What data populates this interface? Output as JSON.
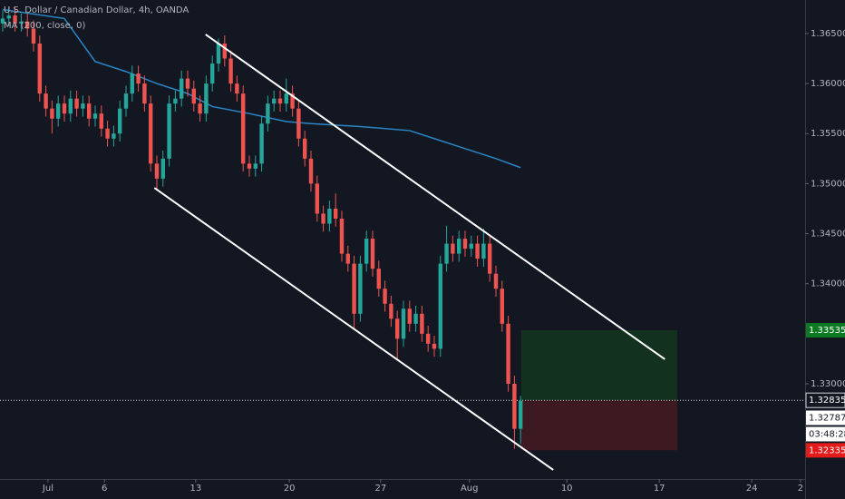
{
  "chart_data": {
    "type": "candlestick",
    "title": "U.S. Dollar / Canadian Dollar, 4h, OANDA",
    "indicator": "MA (200, close, 0)",
    "background": "#131722",
    "up_color": "#26a69a",
    "down_color": "#ef5350",
    "x": [
      0,
      1,
      2,
      3,
      4,
      5,
      6,
      7,
      8,
      9,
      10,
      11,
      12,
      13,
      14,
      15,
      16,
      17,
      18,
      19,
      20,
      21,
      22,
      23,
      24,
      25,
      26,
      27,
      28,
      29,
      30,
      31,
      32,
      33,
      34,
      35,
      36,
      37,
      38,
      39,
      40,
      41,
      42,
      43,
      44,
      45,
      46,
      47,
      48,
      49,
      50,
      51,
      52,
      53,
      54,
      55,
      56,
      57,
      58,
      59,
      60,
      61,
      62,
      63,
      64,
      65,
      66,
      67,
      68,
      69,
      70,
      71,
      72,
      73,
      74,
      75,
      76,
      77,
      78,
      79,
      80,
      81,
      82,
      83,
      84
    ],
    "open": [
      1.366,
      1.3665,
      1.3668,
      1.366,
      1.3662,
      1.3655,
      1.364,
      1.359,
      1.3575,
      1.3565,
      1.358,
      1.357,
      1.3585,
      1.3575,
      1.358,
      1.3565,
      1.357,
      1.3555,
      1.3545,
      1.355,
      1.3575,
      1.359,
      1.361,
      1.36,
      1.358,
      1.352,
      1.3505,
      1.3525,
      1.358,
      1.3585,
      1.3605,
      1.3595,
      1.358,
      1.357,
      1.36,
      1.362,
      1.364,
      1.3625,
      1.36,
      1.359,
      1.352,
      1.3515,
      1.352,
      1.356,
      1.358,
      1.3585,
      1.358,
      1.359,
      1.3575,
      1.3545,
      1.3525,
      1.35,
      1.347,
      1.346,
      1.3475,
      1.3465,
      1.343,
      1.342,
      1.337,
      1.342,
      1.3445,
      1.3415,
      1.3395,
      1.338,
      1.3365,
      1.3345,
      1.3375,
      1.336,
      1.337,
      1.335,
      1.334,
      1.3335,
      1.342,
      1.344,
      1.343,
      1.3445,
      1.3435,
      1.344,
      1.3425,
      1.344,
      1.341,
      1.3395,
      1.336,
      1.33,
      1.3255
    ],
    "high": [
      1.3673,
      1.3676,
      1.3676,
      1.367,
      1.367,
      1.3663,
      1.3648,
      1.3598,
      1.3583,
      1.3588,
      1.3588,
      1.3593,
      1.3593,
      1.3588,
      1.3588,
      1.3578,
      1.3578,
      1.3563,
      1.3558,
      1.3583,
      1.3598,
      1.3618,
      1.3618,
      1.3608,
      1.3588,
      1.3528,
      1.3533,
      1.3588,
      1.3593,
      1.3613,
      1.3613,
      1.3603,
      1.3588,
      1.3608,
      1.3628,
      1.3645,
      1.3648,
      1.3633,
      1.3608,
      1.3598,
      1.3528,
      1.3528,
      1.3568,
      1.3588,
      1.3593,
      1.3593,
      1.3605,
      1.3598,
      1.3583,
      1.3553,
      1.3533,
      1.3508,
      1.3478,
      1.3483,
      1.349,
      1.3473,
      1.3438,
      1.3428,
      1.3428,
      1.3453,
      1.3453,
      1.3423,
      1.3403,
      1.3388,
      1.3373,
      1.3383,
      1.3383,
      1.3378,
      1.3378,
      1.3358,
      1.3348,
      1.3428,
      1.3458,
      1.3448,
      1.3453,
      1.3453,
      1.3448,
      1.3448,
      1.3455,
      1.3448,
      1.3418,
      1.3403,
      1.3368,
      1.3308,
      1.3288
    ],
    "low": [
      1.3652,
      1.3657,
      1.3652,
      1.3652,
      1.3647,
      1.3632,
      1.3582,
      1.3567,
      1.355,
      1.3557,
      1.3562,
      1.3562,
      1.3567,
      1.3567,
      1.3557,
      1.3557,
      1.3547,
      1.3537,
      1.3537,
      1.3542,
      1.3567,
      1.3582,
      1.3592,
      1.3572,
      1.3512,
      1.3495,
      1.3497,
      1.3517,
      1.3572,
      1.3577,
      1.3587,
      1.3572,
      1.3562,
      1.3562,
      1.3592,
      1.3612,
      1.3617,
      1.3592,
      1.3582,
      1.3512,
      1.3507,
      1.3507,
      1.3512,
      1.3552,
      1.3572,
      1.3572,
      1.3572,
      1.3567,
      1.3537,
      1.3517,
      1.3492,
      1.3462,
      1.3452,
      1.3452,
      1.3457,
      1.3422,
      1.3412,
      1.3355,
      1.3362,
      1.3412,
      1.3407,
      1.3387,
      1.3372,
      1.3357,
      1.3325,
      1.3337,
      1.3352,
      1.3352,
      1.3342,
      1.3332,
      1.3327,
      1.3327,
      1.3412,
      1.3422,
      1.3422,
      1.3427,
      1.3427,
      1.3417,
      1.3417,
      1.3402,
      1.3387,
      1.3352,
      1.3292,
      1.3235,
      1.324
    ],
    "close": [
      1.3665,
      1.3668,
      1.366,
      1.3662,
      1.3655,
      1.364,
      1.359,
      1.3575,
      1.3565,
      1.358,
      1.357,
      1.3585,
      1.3575,
      1.358,
      1.3565,
      1.357,
      1.3555,
      1.3545,
      1.355,
      1.3575,
      1.359,
      1.361,
      1.36,
      1.358,
      1.352,
      1.3505,
      1.3525,
      1.358,
      1.3585,
      1.3605,
      1.3595,
      1.358,
      1.357,
      1.36,
      1.362,
      1.364,
      1.3625,
      1.36,
      1.359,
      1.352,
      1.3515,
      1.352,
      1.356,
      1.358,
      1.3585,
      1.358,
      1.359,
      1.3575,
      1.3545,
      1.3525,
      1.35,
      1.347,
      1.346,
      1.3475,
      1.3465,
      1.343,
      1.342,
      1.337,
      1.342,
      1.3445,
      1.3415,
      1.3395,
      1.338,
      1.3365,
      1.3345,
      1.3375,
      1.336,
      1.337,
      1.335,
      1.334,
      1.3335,
      1.342,
      1.344,
      1.343,
      1.3445,
      1.3435,
      1.344,
      1.3425,
      1.344,
      1.341,
      1.3395,
      1.336,
      1.33,
      1.3255,
      1.3283
    ],
    "ma": {
      "color": "#2a86c7",
      "x": [
        0,
        10,
        15,
        20,
        25,
        30,
        34,
        40,
        46,
        50,
        58,
        66,
        70,
        75,
        80,
        84
      ],
      "values": [
        1.3674,
        1.3665,
        1.3622,
        1.3612,
        1.36,
        1.359,
        1.3577,
        1.357,
        1.3562,
        1.356,
        1.3557,
        1.3553,
        1.3545,
        1.3535,
        1.3525,
        1.3516
      ]
    },
    "trendlines": [
      {
        "color": "#ffffff",
        "x": [
          32.9,
          107.4
        ],
        "y": [
          1.36491,
          1.33245
        ]
      },
      {
        "color": "#ffffff",
        "x": [
          24.6,
          89.3
        ],
        "y": [
          1.34958,
          1.32139
        ]
      }
    ],
    "position": {
      "x": [
        84.1,
        109.4
      ],
      "target": {
        "value": 1.33535,
        "label": "1.33535",
        "color": "#0c7a22",
        "zone_color": "#12321f"
      },
      "entry": {
        "value": 1.32835,
        "label": "1.32835"
      },
      "stop": {
        "value": 1.32335,
        "label": "1.32335",
        "color": "#e31b1b",
        "zone_color": "#3d1a21"
      }
    },
    "last_price": {
      "value": 1.32787,
      "label": "1.32787"
    },
    "countdown": "03:48:28",
    "xlim": [
      -0.44,
      130.15
    ],
    "ylim": [
      1.32048,
      1.36835
    ],
    "xticks": [
      {
        "value": 7.35,
        "label": "Jul"
      },
      {
        "value": 16.5,
        "label": "6"
      },
      {
        "value": 31.3,
        "label": "13"
      },
      {
        "value": 46.5,
        "label": "20"
      },
      {
        "value": 61.3,
        "label": "27"
      },
      {
        "value": 75.7,
        "label": "Aug"
      },
      {
        "value": 91.5,
        "label": "10"
      },
      {
        "value": 106.5,
        "label": "17"
      },
      {
        "value": 121.5,
        "label": "24"
      },
      {
        "value": 129.4,
        "label": "2"
      }
    ],
    "yticks": [
      {
        "value": 1.365,
        "label": "1.36500"
      },
      {
        "value": 1.36,
        "label": "1.36000"
      },
      {
        "value": 1.355,
        "label": "1.35500"
      },
      {
        "value": 1.35,
        "label": "1.35000"
      },
      {
        "value": 1.345,
        "label": "1.34500"
      },
      {
        "value": 1.34,
        "label": "1.34000"
      },
      {
        "value": 1.33,
        "label": "1.33000"
      }
    ]
  }
}
